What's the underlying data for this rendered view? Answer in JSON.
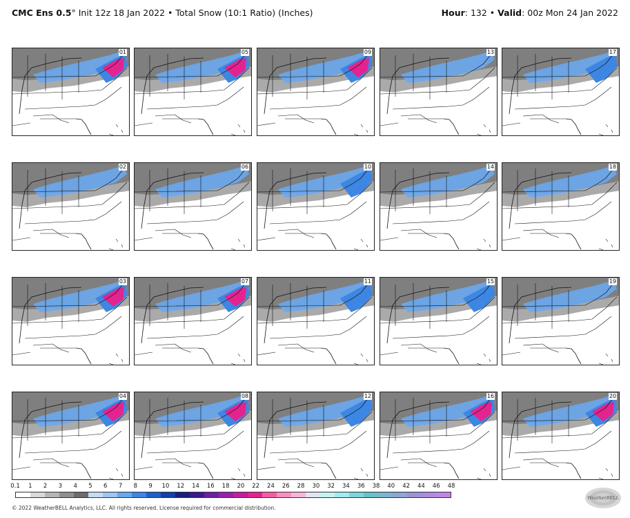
{
  "header": {
    "model": "CMC Ens 0.5",
    "degree": "°",
    "init": " Init 12z 18 Jan 2022",
    "bullet": " • ",
    "product": "Total Snow (10:1 Ratio) (Inches)",
    "hour_label": "Hour",
    "hour_value": ": 132",
    "valid_label": "Valid",
    "valid_value": ": 00z Mon 24 Jan 2022"
  },
  "members": [
    [
      "01",
      "05",
      "09",
      "13",
      "17"
    ],
    [
      "02",
      "06",
      "10",
      "14",
      "18"
    ],
    [
      "03",
      "07",
      "11",
      "15",
      "19"
    ],
    [
      "04",
      "08",
      "12",
      "16",
      "20"
    ]
  ],
  "legend": {
    "ticks": [
      "0.1",
      "1",
      "2",
      "3",
      "4",
      "5",
      "6",
      "7",
      "8",
      "9",
      "10",
      "12",
      "14",
      "16",
      "18",
      "20",
      "22",
      "24",
      "26",
      "28",
      "30",
      "32",
      "34",
      "36",
      "38",
      "40",
      "42",
      "44",
      "46",
      "48"
    ],
    "colors": [
      "#ffffff",
      "#d9d9d9",
      "#b5b5b5",
      "#8e8e8e",
      "#6c6c6c",
      "#c5dcf5",
      "#9cc5f5",
      "#6aa8f0",
      "#3d86e3",
      "#1d60cc",
      "#123fa8",
      "#15207e",
      "#3a1a8c",
      "#6b1fa2",
      "#9a1fa8",
      "#c41e9f",
      "#e4238f",
      "#f45ca6",
      "#f78fc1",
      "#f7b6d6",
      "#e3e3f2",
      "#c6f1f3",
      "#a1ecee",
      "#7ad6dd",
      "#65c3c9",
      "#7bb6d0",
      "#8fa5d4",
      "#9b93d6",
      "#ac8ce0",
      "#c086e6"
    ]
  },
  "copyright": "© 2022 WeatherBELL Analytics, LLC. All rights reserved. License required for commercial distribution.",
  "logo_text": "WeatherBELL"
}
